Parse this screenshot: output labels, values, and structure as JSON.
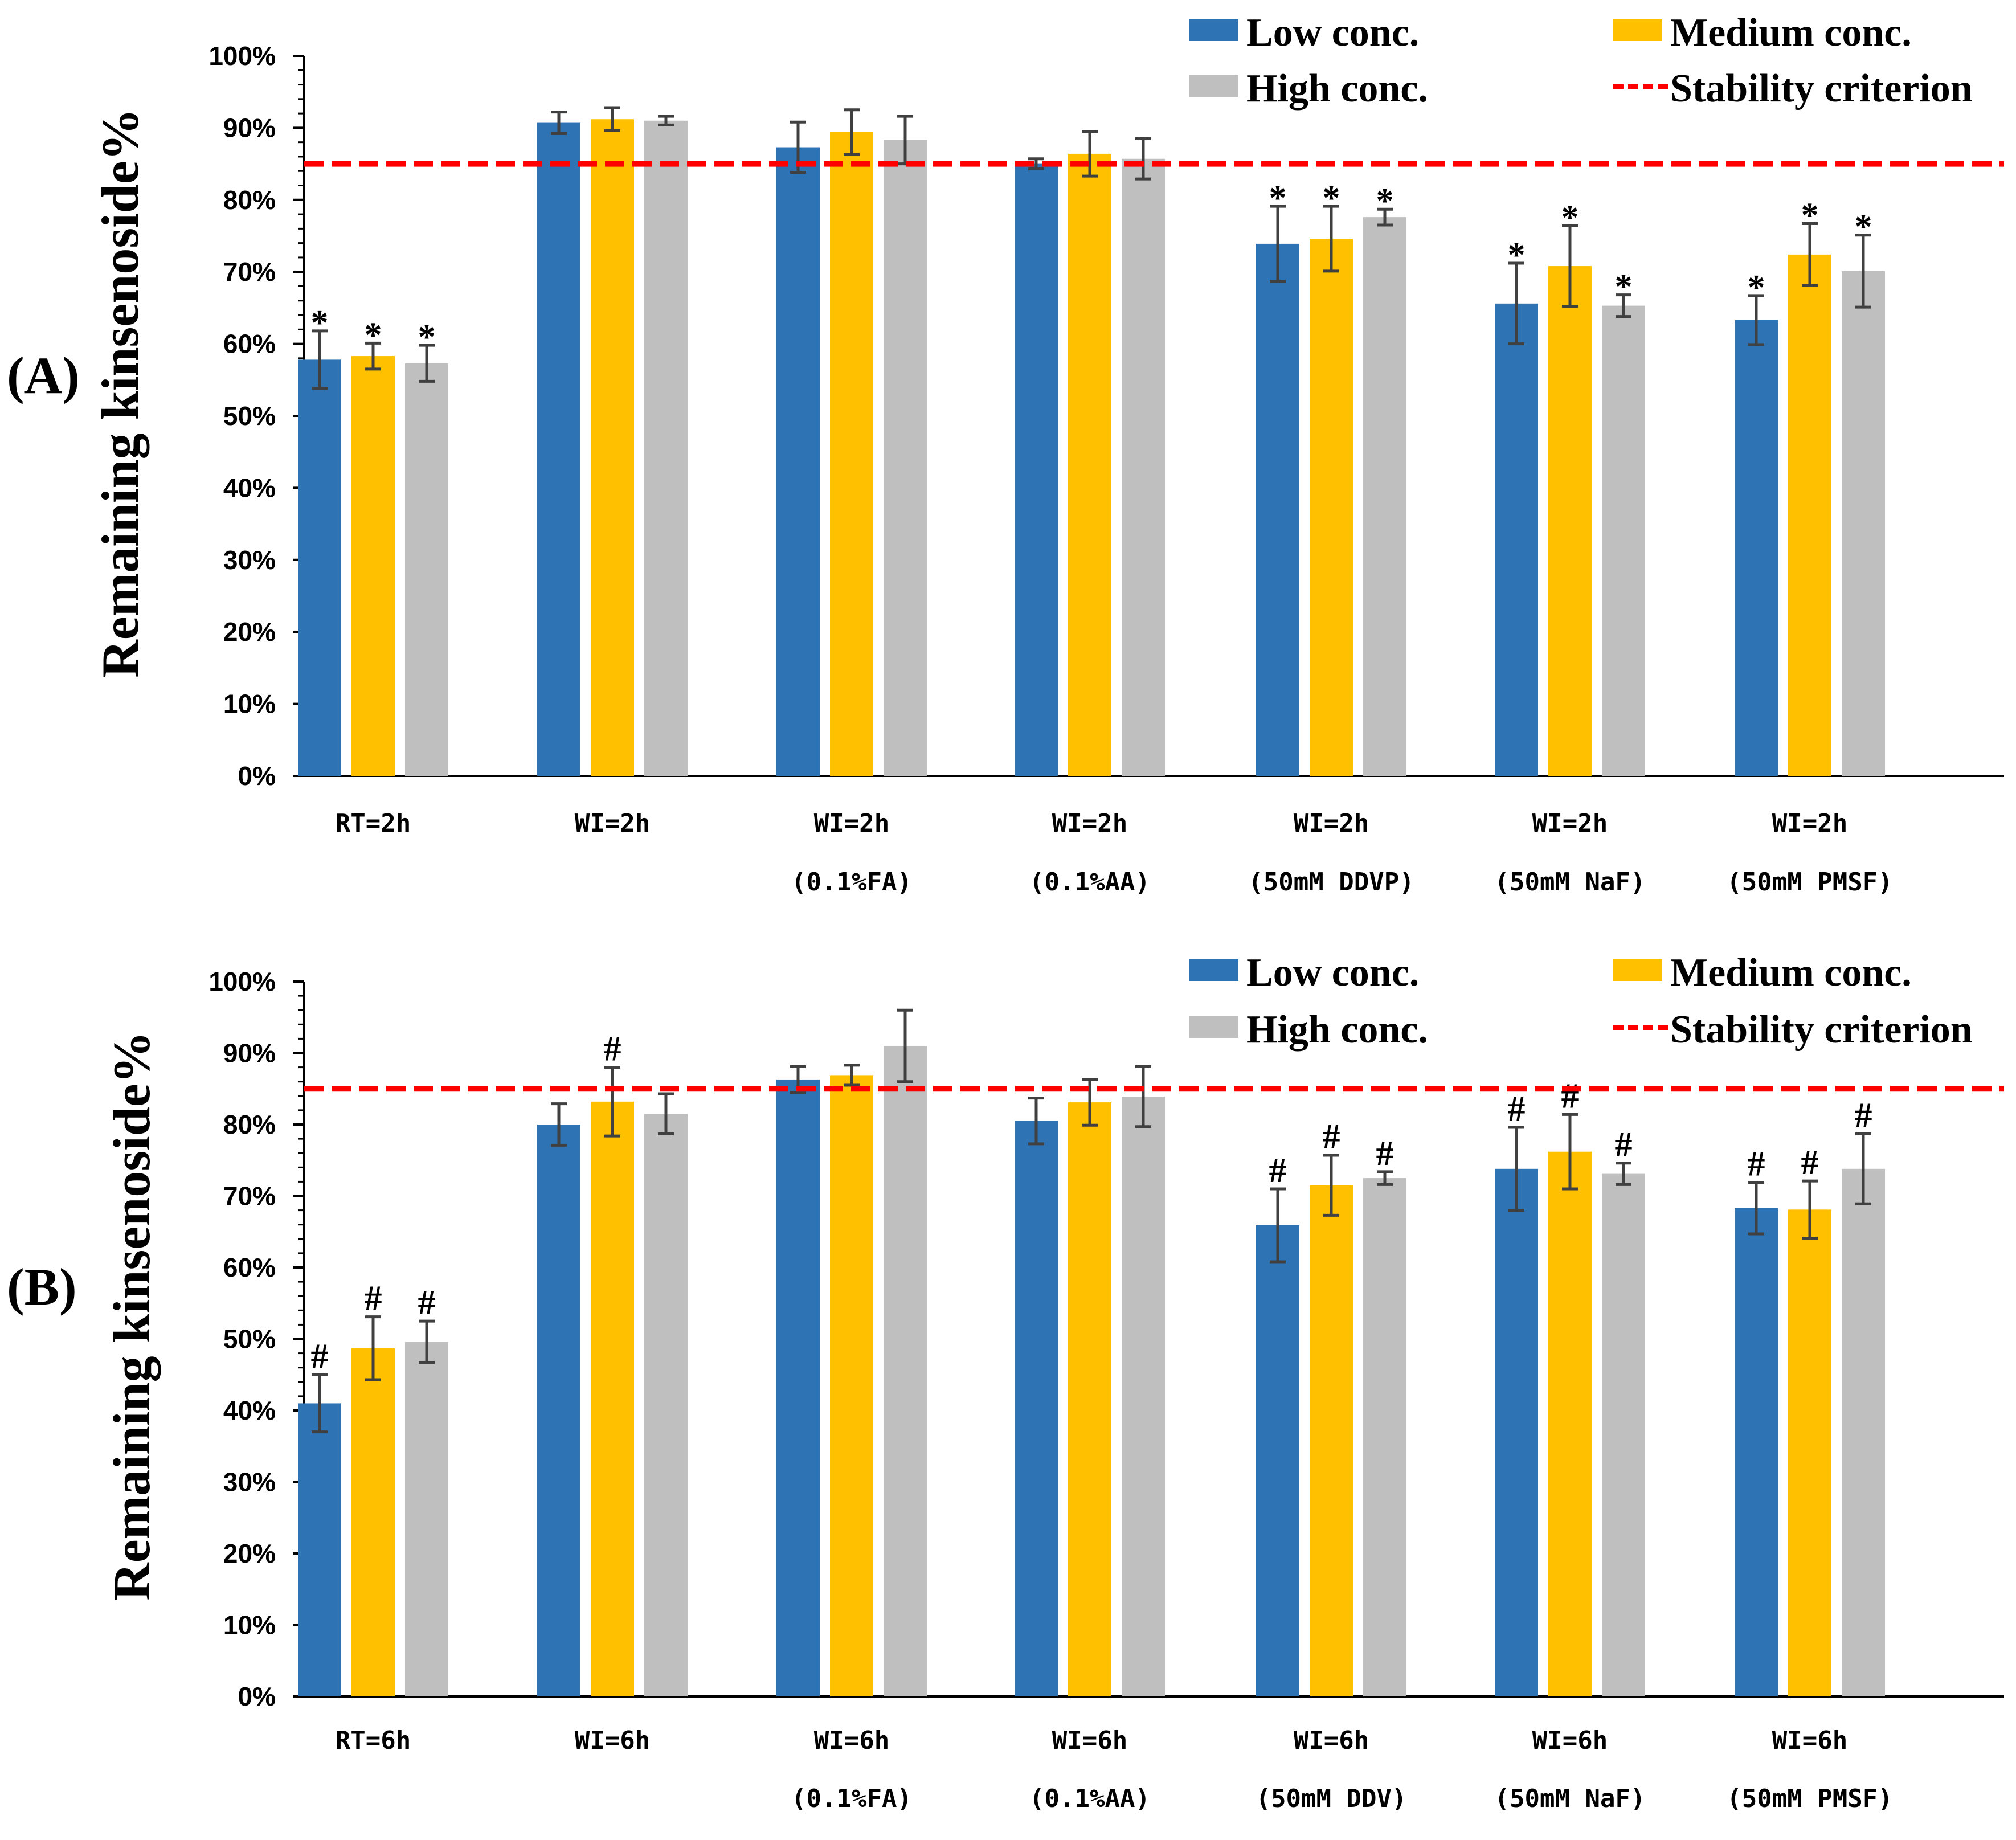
{
  "legend": {
    "low": "Low conc.",
    "medium": "Medium conc.",
    "high": "High conc.",
    "criterion": "Stability criterion"
  },
  "colors": {
    "low": "#2e74b5",
    "medium": "#ffc000",
    "high": "#bfbfbf",
    "criterion": "#ff0000",
    "error_bar": "#404040"
  },
  "chart_data": [
    {
      "type": "bar",
      "panel_label": "(A)",
      "ylabel": "Remaining kinsenoside%",
      "ylim": [
        0,
        100
      ],
      "yticks": [
        "0%",
        "10%",
        "20%",
        "30%",
        "40%",
        "50%",
        "60%",
        "70%",
        "80%",
        "90%",
        "100%"
      ],
      "stability_criterion": 85,
      "categories": [
        [
          "RT=2h",
          ""
        ],
        [
          "WI=2h",
          ""
        ],
        [
          "WI=2h",
          "(0.1%FA)"
        ],
        [
          "WI=2h",
          "(0.1%AA)"
        ],
        [
          "WI=2h",
          "(50mM DDVP)"
        ],
        [
          "WI=2h",
          "(50mM NaF)"
        ],
        [
          "WI=2h",
          "(50mM PMSF)"
        ]
      ],
      "series": [
        {
          "name": "Low conc.",
          "key": "low",
          "values": [
            57.8,
            90.7,
            87.3,
            85.0,
            73.9,
            65.6,
            63.3
          ],
          "errors": [
            4.0,
            1.5,
            3.5,
            0.7,
            5.2,
            5.6,
            3.4
          ],
          "markers": [
            "*",
            "",
            "",
            "",
            "*",
            "*",
            "*"
          ]
        },
        {
          "name": "Medium conc.",
          "key": "medium",
          "values": [
            58.3,
            91.2,
            89.4,
            86.4,
            74.6,
            70.8,
            72.4
          ],
          "errors": [
            1.8,
            1.6,
            3.1,
            3.1,
            4.5,
            5.6,
            4.3
          ],
          "markers": [
            "*",
            "",
            "",
            "",
            "*",
            "*",
            "*"
          ]
        },
        {
          "name": "High conc.",
          "key": "high",
          "values": [
            57.3,
            91.0,
            88.3,
            85.7,
            77.6,
            65.3,
            70.1
          ],
          "errors": [
            2.5,
            0.6,
            3.3,
            2.8,
            1.1,
            1.5,
            5.0
          ],
          "markers": [
            "*",
            "",
            "",
            "",
            "*",
            "*",
            "*"
          ]
        }
      ]
    },
    {
      "type": "bar",
      "panel_label": "(B)",
      "ylabel": "Remaining kinsenoside%",
      "ylim": [
        0,
        100
      ],
      "yticks": [
        "0%",
        "10%",
        "20%",
        "30%",
        "40%",
        "50%",
        "60%",
        "70%",
        "80%",
        "90%",
        "100%"
      ],
      "stability_criterion": 85,
      "categories": [
        [
          "RT=6h",
          ""
        ],
        [
          "WI=6h",
          ""
        ],
        [
          "WI=6h",
          "(0.1%FA)"
        ],
        [
          "WI=6h",
          "(0.1%AA)"
        ],
        [
          "WI=6h",
          "(50mM DDV)"
        ],
        [
          "WI=6h",
          "(50mM NaF)"
        ],
        [
          "WI=6h",
          "(50mM PMSF)"
        ]
      ],
      "series": [
        {
          "name": "Low conc.",
          "key": "low",
          "values": [
            41.0,
            80.0,
            86.3,
            80.5,
            65.9,
            73.8,
            68.3
          ],
          "errors": [
            4.0,
            2.9,
            1.8,
            3.2,
            5.1,
            5.8,
            3.6
          ],
          "markers": [
            "#",
            "",
            "",
            "",
            "#",
            "#",
            "#"
          ]
        },
        {
          "name": "Medium conc.",
          "key": "medium",
          "values": [
            48.7,
            83.2,
            86.9,
            83.1,
            71.5,
            76.2,
            68.1
          ],
          "errors": [
            4.4,
            4.8,
            1.4,
            3.2,
            4.2,
            5.2,
            4.0
          ],
          "markers": [
            "#",
            "#",
            "",
            "",
            "#",
            "#",
            "#"
          ]
        },
        {
          "name": "High conc.",
          "key": "high",
          "values": [
            49.6,
            81.5,
            91.0,
            83.9,
            72.5,
            73.1,
            73.8
          ],
          "errors": [
            2.9,
            2.8,
            5.0,
            4.2,
            0.9,
            1.5,
            4.9
          ],
          "markers": [
            "#",
            "",
            "",
            "",
            "#",
            "#",
            "#"
          ]
        }
      ]
    }
  ]
}
